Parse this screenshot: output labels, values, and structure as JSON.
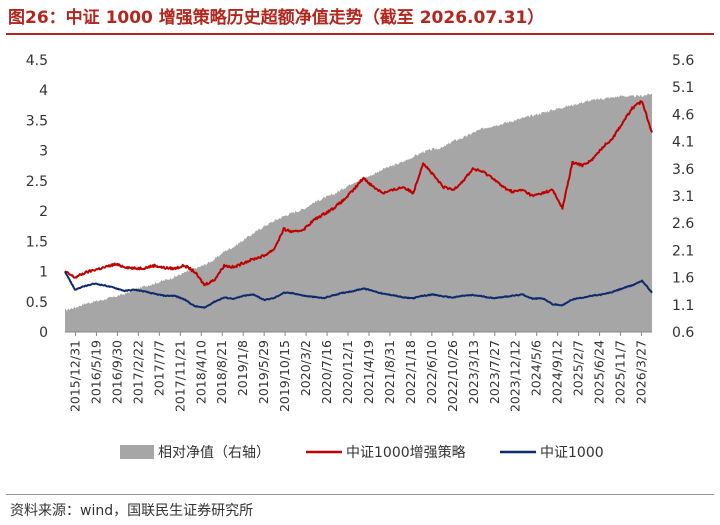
{
  "title": "图26：中证 1000 增强策略历史超额净值走势（截至 2026.07.31）",
  "source": "资料来源：wind，国联民生证券研究所",
  "colors": {
    "title": "#b3261e",
    "excess": "#a6a6a6",
    "strategy": "#c00000",
    "index": "#0d2a6b"
  },
  "chart_data": {
    "type": "line",
    "y_left": {
      "ticks": [
        "0",
        "0.5",
        "1",
        "1.5",
        "2",
        "2.5",
        "3",
        "3.5",
        "4",
        "4.5"
      ],
      "lim": [
        0,
        4.5
      ]
    },
    "y_right": {
      "ticks": [
        "0.6",
        "1.1",
        "1.6",
        "2.1",
        "2.6",
        "3.1",
        "3.6",
        "4.1",
        "4.6",
        "5.1",
        "5.6"
      ],
      "lim": [
        0.6,
        5.6
      ]
    },
    "x_ticks": [
      "2015/12/31",
      "2016/5/19",
      "2016/9/30",
      "2017/2/22",
      "2017/7/7",
      "2017/11/21",
      "2018/4/10",
      "2018/8/21",
      "2019/1/8",
      "2019/5/29",
      "2019/10/15",
      "2020/3/2",
      "2020/7/16",
      "2020/12/1",
      "2021/4/19",
      "2021/8/31",
      "2022/1/18",
      "2022/6/10",
      "2022/10/26",
      "2023/3/13",
      "2023/7/27",
      "2023/12/12",
      "2024/5/6",
      "2024/9/12",
      "2025/2/7",
      "2025/6/24",
      "2025/11/7",
      "2026/3/27"
    ],
    "series": [
      {
        "name": "相对净值（右轴）",
        "kind": "area",
        "axis": "right",
        "values": [
          1.0,
          1.05,
          1.12,
          1.16,
          1.2,
          1.25,
          1.3,
          1.38,
          1.44,
          1.49,
          1.55,
          1.61,
          1.69,
          1.76,
          1.83,
          1.93,
          2.08,
          2.17,
          2.3,
          2.42,
          2.54,
          2.64,
          2.73,
          2.8,
          2.86,
          2.98,
          3.06,
          3.13,
          3.24,
          3.35,
          3.42,
          3.5,
          3.6,
          3.66,
          3.73,
          3.82,
          3.91,
          3.96,
          3.99,
          4.11,
          4.17,
          4.26,
          4.34,
          4.39,
          4.43,
          4.48,
          4.53,
          4.58,
          4.63,
          4.68,
          4.73,
          4.77,
          4.82,
          4.86,
          4.89,
          4.91,
          4.94,
          4.93,
          4.94,
          4.98
        ]
      },
      {
        "name": "中证1000增强策略",
        "kind": "line",
        "axis": "left",
        "values": [
          1.0,
          0.9,
          0.98,
          1.03,
          1.07,
          1.12,
          1.08,
          1.05,
          1.06,
          1.1,
          1.06,
          1.05,
          1.1,
          1.0,
          0.78,
          0.86,
          1.1,
          1.07,
          1.15,
          1.21,
          1.26,
          1.37,
          1.7,
          1.65,
          1.7,
          1.85,
          1.95,
          2.05,
          2.18,
          2.35,
          2.55,
          2.4,
          2.3,
          2.35,
          2.4,
          2.3,
          2.8,
          2.6,
          2.4,
          2.35,
          2.5,
          2.7,
          2.65,
          2.55,
          2.4,
          2.32,
          2.35,
          2.25,
          2.3,
          2.35,
          2.05,
          2.8,
          2.76,
          2.85,
          3.05,
          3.2,
          3.45,
          3.7,
          3.82,
          3.3
        ]
      },
      {
        "name": "中证1000",
        "kind": "line",
        "axis": "left",
        "values": [
          1.0,
          0.7,
          0.76,
          0.8,
          0.77,
          0.73,
          0.68,
          0.7,
          0.67,
          0.63,
          0.6,
          0.6,
          0.54,
          0.43,
          0.4,
          0.5,
          0.57,
          0.55,
          0.6,
          0.62,
          0.53,
          0.56,
          0.65,
          0.64,
          0.6,
          0.58,
          0.56,
          0.61,
          0.65,
          0.68,
          0.72,
          0.68,
          0.63,
          0.61,
          0.57,
          0.56,
          0.6,
          0.62,
          0.59,
          0.57,
          0.6,
          0.61,
          0.59,
          0.56,
          0.58,
          0.6,
          0.62,
          0.55,
          0.56,
          0.46,
          0.44,
          0.54,
          0.57,
          0.6,
          0.62,
          0.66,
          0.72,
          0.77,
          0.85,
          0.65
        ]
      }
    ],
    "legend_position": "bottom",
    "grid": false
  }
}
